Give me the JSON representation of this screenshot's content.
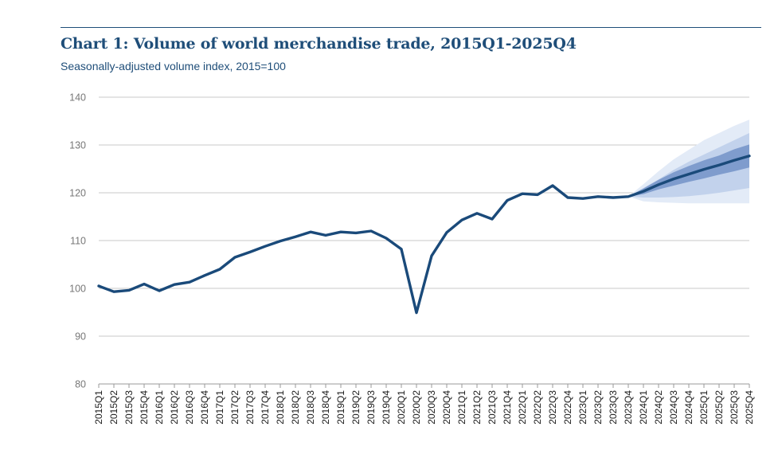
{
  "chart_data": {
    "type": "line",
    "title": "Chart 1: Volume of world merchandise trade, 2015Q1-2025Q4",
    "subtitle": "Seasonally-adjusted volume index, 2015=100",
    "xlabel": "",
    "ylabel": "",
    "ylim": [
      80,
      140
    ],
    "yticks": [
      80,
      90,
      100,
      110,
      120,
      130,
      140
    ],
    "grid": true,
    "categories": [
      "2015Q1",
      "2015Q2",
      "2015Q3",
      "2015Q4",
      "2016Q1",
      "2016Q2",
      "2016Q3",
      "2016Q4",
      "2017Q1",
      "2017Q2",
      "2017Q3",
      "2017Q4",
      "2018Q1",
      "2018Q2",
      "2018Q3",
      "2018Q4",
      "2019Q1",
      "2019Q2",
      "2019Q3",
      "2019Q4",
      "2020Q1",
      "2020Q2",
      "2020Q3",
      "2020Q4",
      "2021Q1",
      "2021Q2",
      "2021Q3",
      "2021Q4",
      "2022Q1",
      "2022Q2",
      "2022Q3",
      "2022Q4",
      "2023Q1",
      "2023Q2",
      "2023Q3",
      "2023Q4",
      "2024Q1",
      "2024Q2",
      "2024Q3",
      "2024Q4",
      "2025Q1",
      "2025Q2",
      "2025Q3",
      "2025Q4"
    ],
    "series": [
      {
        "values": [
          100.5,
          99.3,
          99.6,
          100.9,
          99.5,
          100.8,
          101.3,
          102.7,
          104.0,
          106.5,
          107.6,
          108.8,
          109.9,
          110.8,
          111.8,
          111.1,
          111.8,
          111.6,
          112.0,
          110.5,
          108.2,
          94.9,
          106.8,
          111.7,
          114.3,
          115.7,
          114.5,
          118.4,
          119.8,
          119.6,
          121.5,
          119.0,
          118.8,
          119.2,
          119.0,
          119.2,
          120.3,
          121.7,
          122.9,
          123.9,
          124.9,
          125.8,
          126.8,
          127.7
        ],
        "color": "#1a4a7a"
      }
    ],
    "forecast_bands": {
      "start_index": 35,
      "colors": [
        "#e3ebf7",
        "#c2d2ec",
        "#7f9ccd"
      ],
      "bands": [
        {
          "lower": [
            119.2,
            118.2,
            118.0,
            117.9,
            117.8,
            117.8,
            117.8,
            117.8,
            117.8
          ],
          "upper": [
            119.2,
            121.8,
            124.5,
            127.0,
            129.0,
            131.0,
            132.5,
            134.0,
            135.3
          ]
        },
        {
          "lower": [
            119.2,
            119.0,
            119.0,
            119.1,
            119.3,
            119.6,
            120.0,
            120.5,
            121.0
          ],
          "upper": [
            119.2,
            121.0,
            122.8,
            124.8,
            126.5,
            128.0,
            129.5,
            131.0,
            132.5
          ]
        },
        {
          "lower": [
            119.2,
            119.7,
            120.7,
            121.5,
            122.3,
            123.0,
            123.8,
            124.5,
            125.3
          ],
          "upper": [
            119.2,
            120.9,
            122.7,
            124.3,
            125.6,
            126.8,
            127.8,
            129.1,
            130.1
          ]
        }
      ]
    }
  }
}
